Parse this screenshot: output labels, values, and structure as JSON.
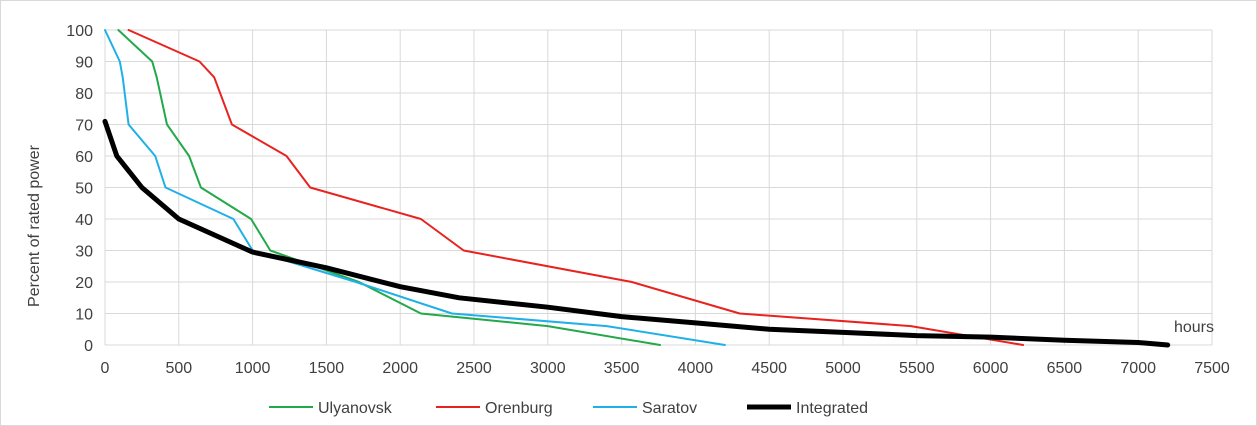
{
  "chart_data": {
    "type": "line",
    "title": "",
    "xlabel": "",
    "ylabel": "Percent of rated power",
    "annotation": "hours",
    "xlim": [
      0,
      7500
    ],
    "ylim": [
      0,
      100
    ],
    "x_ticks": [
      0,
      500,
      1000,
      1500,
      2000,
      2500,
      3000,
      3500,
      4000,
      4500,
      5000,
      5500,
      6000,
      6500,
      7000,
      7500
    ],
    "y_ticks": [
      0,
      10,
      20,
      30,
      40,
      50,
      60,
      70,
      80,
      90,
      100
    ],
    "grid": true,
    "legend_position": "bottom",
    "series": [
      {
        "name": "Ulyanovsk",
        "color": "#22a94a",
        "width": 2,
        "points": [
          [
            90,
            100
          ],
          [
            320,
            90
          ],
          [
            350,
            85
          ],
          [
            420,
            70
          ],
          [
            570,
            60
          ],
          [
            650,
            50
          ],
          [
            990,
            40
          ],
          [
            1120,
            30
          ],
          [
            1720,
            20
          ],
          [
            2140,
            10
          ],
          [
            3000,
            6
          ],
          [
            3760,
            0
          ]
        ]
      },
      {
        "name": "Orenburg",
        "color": "#e8231f",
        "width": 2,
        "points": [
          [
            160,
            100
          ],
          [
            640,
            90
          ],
          [
            740,
            85
          ],
          [
            860,
            70
          ],
          [
            1230,
            60
          ],
          [
            1390,
            50
          ],
          [
            2140,
            40
          ],
          [
            2430,
            30
          ],
          [
            3570,
            20
          ],
          [
            4300,
            10
          ],
          [
            5460,
            6
          ],
          [
            6220,
            0
          ]
        ]
      },
      {
        "name": "Saratov",
        "color": "#1fb0e8",
        "width": 2,
        "points": [
          [
            0,
            100
          ],
          [
            100,
            90
          ],
          [
            120,
            85
          ],
          [
            160,
            70
          ],
          [
            340,
            60
          ],
          [
            410,
            50
          ],
          [
            870,
            40
          ],
          [
            1000,
            30
          ],
          [
            1700,
            20
          ],
          [
            2350,
            10
          ],
          [
            3400,
            6
          ],
          [
            4200,
            0
          ]
        ]
      },
      {
        "name": "Integrated",
        "color": "#000000",
        "width": 5,
        "points": [
          [
            0,
            71
          ],
          [
            80,
            60
          ],
          [
            250,
            50
          ],
          [
            500,
            40
          ],
          [
            1000,
            29.5
          ],
          [
            1500,
            24.5
          ],
          [
            2000,
            18.5
          ],
          [
            2400,
            15
          ],
          [
            3000,
            12
          ],
          [
            3500,
            9
          ],
          [
            4000,
            7
          ],
          [
            4500,
            5
          ],
          [
            5000,
            4
          ],
          [
            5500,
            3
          ],
          [
            6000,
            2.5
          ],
          [
            6500,
            1.5
          ],
          [
            7000,
            0.8
          ],
          [
            7200,
            0
          ]
        ]
      }
    ]
  }
}
